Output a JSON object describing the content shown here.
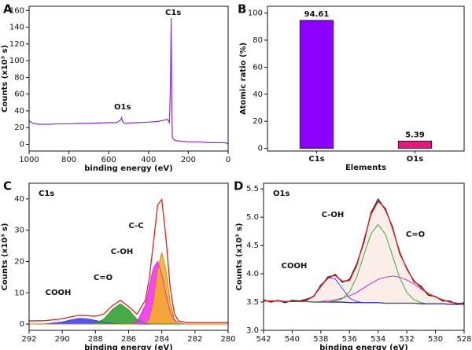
{
  "chart_data": [
    {
      "type": "line",
      "panel": "A",
      "xlabel": "binding energy (eV)",
      "ylabel": "Counts (x10³ s)",
      "xlim": [
        1000,
        0
      ],
      "xticks": [
        1000,
        800,
        600,
        400,
        200,
        0
      ],
      "ylim": [
        -8,
        165
      ],
      "yticks": [
        0,
        20,
        40,
        60,
        80,
        100,
        120,
        140,
        160
      ],
      "color": "#8a2be2",
      "annotations": [
        "C1s",
        "O1s"
      ],
      "x": [
        1000,
        980,
        950,
        900,
        850,
        800,
        750,
        700,
        650,
        600,
        560,
        540,
        535,
        530,
        520,
        500,
        450,
        400,
        350,
        320,
        305,
        295,
        290,
        286,
        283,
        280,
        270,
        250,
        200,
        150,
        100,
        50,
        20,
        0
      ],
      "values": [
        28,
        25,
        24,
        24,
        24.5,
        24.5,
        25,
        25,
        25.5,
        26,
        26,
        29,
        32,
        27,
        25,
        25.5,
        26,
        26.5,
        27.5,
        29,
        30,
        26,
        70,
        151,
        40,
        8,
        5,
        4,
        3,
        3,
        2,
        2,
        2,
        1
      ]
    },
    {
      "type": "bar",
      "panel": "B",
      "xlabel": "Elements",
      "ylabel": "Atomic ratio (%)",
      "ylim": [
        -2,
        105
      ],
      "yticks": [
        0,
        20,
        40,
        60,
        80,
        100
      ],
      "categories": [
        "C1s",
        "O1s"
      ],
      "values": [
        94.61,
        5.39
      ],
      "colors": [
        "#8b00ff",
        "#e6177a"
      ]
    },
    {
      "type": "area",
      "panel": "C",
      "title": "C1s",
      "xlabel": "binding energy (eV)",
      "ylabel": "Counts (x10³ s)",
      "xlim": [
        292,
        280
      ],
      "xticks": [
        292,
        290,
        288,
        286,
        284,
        282,
        280
      ],
      "ylim": [
        -2,
        45
      ],
      "yticks": [
        0,
        10,
        20,
        30,
        40
      ],
      "x": [
        292,
        291,
        290,
        289.5,
        289,
        288.5,
        288,
        287.5,
        287,
        286.5,
        286,
        285.5,
        285,
        284.75,
        284.5,
        284.25,
        284,
        283.75,
        283.5,
        283.25,
        283,
        282.5,
        282,
        281,
        280
      ],
      "series": [
        {
          "name": "COOH",
          "color": "#3c3cf0",
          "fill": "#3c3cf0",
          "values": [
            0,
            0.1,
            0.7,
            1.3,
            1.8,
            1.7,
            1.2,
            0.6,
            0.2,
            0.1,
            0,
            0,
            0,
            0,
            0,
            0,
            0,
            0,
            0,
            0,
            0,
            0,
            0,
            0,
            0
          ]
        },
        {
          "name": "C=O",
          "color": "#2e9e2e",
          "fill": "#2e9e2e",
          "values": [
            0,
            0,
            0,
            0,
            0,
            0,
            0.3,
            1.6,
            4.6,
            6.5,
            4.6,
            1.6,
            0.3,
            0.1,
            0,
            0,
            0,
            0,
            0,
            0,
            0,
            0,
            0,
            0,
            0
          ]
        },
        {
          "name": "C-OH",
          "color": "#e020e0",
          "fill": "#f030f0",
          "values": [
            0,
            0,
            0,
            0,
            0,
            0,
            0,
            0,
            0,
            0,
            0,
            0.6,
            6.0,
            12.1,
            18.1,
            20.0,
            16.0,
            9.5,
            4.1,
            1.3,
            0.3,
            0,
            0,
            0,
            0
          ]
        },
        {
          "name": "C-C",
          "color": "#b88a10",
          "fill": "#f2b21f",
          "values": [
            0,
            0,
            0,
            0,
            0,
            0,
            0,
            0,
            0,
            0,
            0,
            0,
            0.2,
            1.7,
            7.3,
            17.3,
            23,
            17.3,
            7.3,
            1.7,
            0.2,
            0,
            0,
            0,
            0
          ]
        },
        {
          "color": "#e02020",
          "values": [
            1.0,
            1.1,
            1.7,
            2.3,
            2.8,
            2.7,
            2.5,
            3.2,
            5.8,
            7.6,
            5.6,
            3.2,
            7.5,
            14.7,
            26.2,
            38.1,
            39.8,
            27.5,
            12.0,
            3.5,
            1.0,
            0.5,
            0.5,
            0.5,
            0.5
          ]
        }
      ]
    },
    {
      "type": "area",
      "panel": "D",
      "title": "O1s",
      "xlabel": "binding energy (eV)",
      "ylabel": "Counts (x10³ s)",
      "xlim": [
        542,
        528
      ],
      "xticks": [
        542,
        540,
        538,
        536,
        534,
        532,
        530,
        528
      ],
      "ylim": [
        3.0,
        5.6
      ],
      "yticks": [
        {
          "value": 3,
          "label": "3.0"
        },
        3.5,
        {
          "value": 4,
          "label": "4.0"
        },
        4.5,
        {
          "value": 5,
          "label": "5.0"
        },
        5.5
      ],
      "x": [
        542,
        541.5,
        541,
        540.5,
        540,
        539.5,
        539,
        538.5,
        538,
        537.5,
        537,
        536.5,
        536,
        535.5,
        535,
        534.5,
        534,
        533.5,
        533,
        532.5,
        532,
        531.5,
        531,
        530.5,
        530,
        529.5,
        529,
        528.5,
        528
      ],
      "series": [
        {
          "color": "#1a237e",
          "baseline": true,
          "values": [
            3.52,
            3.52,
            3.52,
            3.51,
            3.51,
            3.51,
            3.51,
            3.5,
            3.5,
            3.5,
            3.5,
            3.5,
            3.49,
            3.49,
            3.49,
            3.49,
            3.49,
            3.48,
            3.48,
            3.48,
            3.48,
            3.48,
            3.47,
            3.47,
            3.47,
            3.47,
            3.46,
            3.46,
            3.46
          ]
        },
        {
          "name": "C=O",
          "color": "#c01ac0",
          "fill": "#d62ad6",
          "values": [
            3.52,
            3.52,
            3.52,
            3.51,
            3.51,
            3.51,
            3.51,
            3.5,
            3.51,
            3.52,
            3.54,
            3.57,
            3.61,
            3.67,
            3.75,
            3.83,
            3.9,
            3.94,
            3.96,
            3.94,
            3.89,
            3.82,
            3.73,
            3.65,
            3.59,
            3.54,
            3.5,
            3.48,
            3.47
          ]
        },
        {
          "name": "C-OH",
          "color": "#2e9e2e",
          "fill": "#2e9e2e",
          "values": [
            3.52,
            3.52,
            3.52,
            3.51,
            3.51,
            3.51,
            3.51,
            3.5,
            3.5,
            3.5,
            3.52,
            3.56,
            3.68,
            3.94,
            4.33,
            4.71,
            4.87,
            4.7,
            4.32,
            3.93,
            3.67,
            3.54,
            3.49,
            3.47,
            3.47,
            3.47,
            3.46,
            3.46,
            3.46
          ]
        },
        {
          "name": "COOH",
          "color": "#3c3cf0",
          "fill": "#3c3cf0",
          "values": [
            3.52,
            3.52,
            3.52,
            3.51,
            3.51,
            3.51,
            3.53,
            3.6,
            3.77,
            3.93,
            3.91,
            3.74,
            3.57,
            3.51,
            3.49,
            3.49,
            3.49,
            3.48,
            3.48,
            3.48,
            3.48,
            3.48,
            3.47,
            3.47,
            3.47,
            3.47,
            3.46,
            3.46,
            3.46
          ]
        },
        {
          "color": "#222222",
          "values": [
            3.54,
            3.5,
            3.53,
            3.49,
            3.53,
            3.52,
            3.55,
            3.6,
            3.8,
            3.92,
            3.99,
            3.85,
            3.9,
            4.17,
            4.55,
            5.08,
            5.32,
            5.13,
            4.83,
            4.36,
            4.1,
            3.86,
            3.78,
            3.62,
            3.6,
            3.52,
            3.52,
            3.46,
            3.49
          ]
        },
        {
          "color": "#e02020",
          "fill": "#fbeee9",
          "values": [
            3.52,
            3.52,
            3.52,
            3.51,
            3.51,
            3.51,
            3.53,
            3.61,
            3.78,
            3.95,
            3.97,
            3.87,
            3.88,
            4.14,
            4.59,
            5.05,
            5.28,
            5.16,
            4.8,
            4.39,
            4.08,
            3.88,
            3.75,
            3.65,
            3.59,
            3.54,
            3.5,
            3.48,
            3.47
          ]
        }
      ]
    }
  ]
}
